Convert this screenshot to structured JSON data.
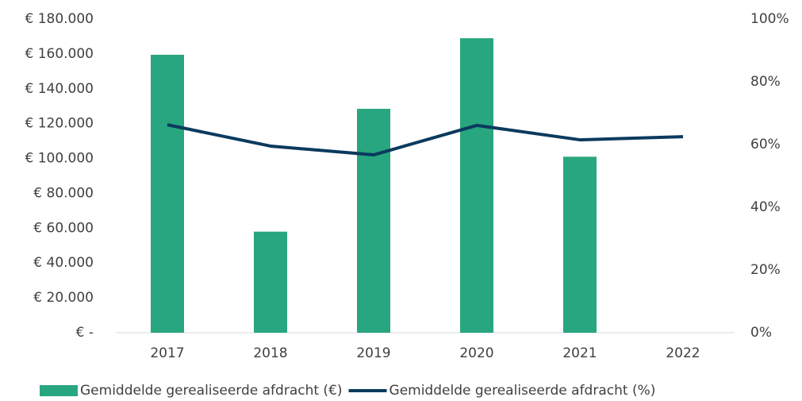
{
  "chart_data": {
    "type": "bar+line",
    "categories": [
      "2017",
      "2018",
      "2019",
      "2020",
      "2021",
      "2022"
    ],
    "series": [
      {
        "name": "Gemiddelde gerealiseerde afdracht (€)",
        "type": "bar",
        "color": "#28a67f",
        "values": [
          159500,
          58000,
          128500,
          169000,
          101000,
          null
        ]
      },
      {
        "name": "Gemiddelde gerealiseerde afdracht (%)",
        "type": "line",
        "axis": "y2",
        "color": "#0a3a5e",
        "values": [
          66.3,
          59.5,
          56.7,
          66.1,
          61.5,
          62.5
        ]
      }
    ],
    "ylim": [
      0,
      180000
    ],
    "yticks": [
      {
        "value": 0,
        "label": "€ -"
      },
      {
        "value": 20000,
        "label": "€ 20.000"
      },
      {
        "value": 40000,
        "label": "€ 40.000"
      },
      {
        "value": 60000,
        "label": "€ 60.000"
      },
      {
        "value": 80000,
        "label": "€ 80.000"
      },
      {
        "value": 100000,
        "label": "€ 100.000"
      },
      {
        "value": 120000,
        "label": "€ 120.000"
      },
      {
        "value": 140000,
        "label": "€ 140.000"
      },
      {
        "value": 160000,
        "label": "€ 160.000"
      },
      {
        "value": 180000,
        "label": "€ 180.000"
      }
    ],
    "y2lim": [
      0,
      100
    ],
    "y2ticks": [
      {
        "value": 0,
        "label": "0%"
      },
      {
        "value": 20,
        "label": "20%"
      },
      {
        "value": 40,
        "label": "40%"
      },
      {
        "value": 60,
        "label": "60%"
      },
      {
        "value": 80,
        "label": "80%"
      },
      {
        "value": 100,
        "label": "100%"
      }
    ],
    "grid": false,
    "legend": "bottom"
  }
}
